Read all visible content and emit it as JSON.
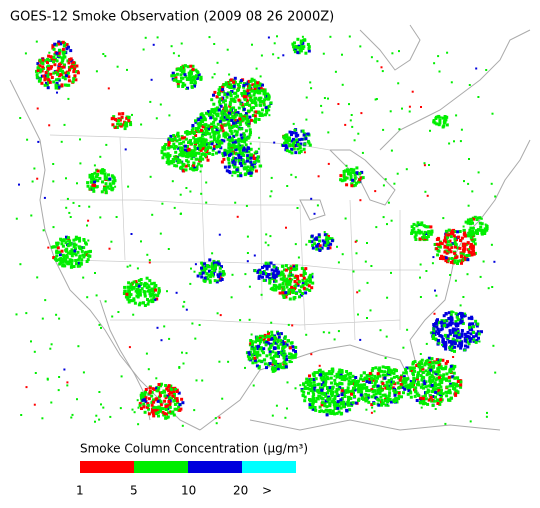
{
  "title": "GOES-12 Smoke Observation (2009 08 26  2000Z)",
  "legend": {
    "label": "Smoke Column Concentration (μg/m³)",
    "colors": [
      "#ff0000",
      "#00ee00",
      "#0000dd",
      "#00ffff"
    ],
    "ticks": [
      1,
      5,
      10,
      20,
      ">"
    ]
  }
}
